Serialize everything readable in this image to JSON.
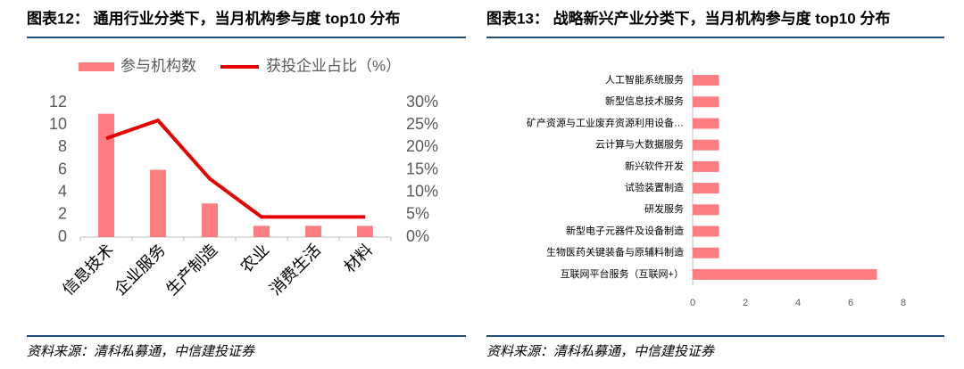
{
  "chart_data": [
    {
      "type": "combo",
      "title": "图表12： 通用行业分类下，当月机构参与度 top10 分布",
      "source": "资料来源：清科私募通，中信建投证券",
      "categories": [
        "信息技术",
        "企业服务",
        "生产制造",
        "农业",
        "消费生活",
        "材料"
      ],
      "series": [
        {
          "name": "参与机构数",
          "type": "bar",
          "color": "#ff7c80",
          "values": [
            11,
            6,
            3,
            1,
            1,
            1
          ]
        },
        {
          "name": "获投企业占比（%）",
          "type": "line",
          "axis": "y2",
          "color": "#e60000",
          "values": [
            22,
            26,
            13,
            4.5,
            4.5,
            4.5
          ]
        }
      ],
      "ylim": [
        0,
        12
      ],
      "yticks": [
        0,
        2,
        4,
        6,
        8,
        10,
        12
      ],
      "y2lim": [
        0,
        30
      ],
      "y2ticks": [
        {
          "value": 0,
          "label": "0%"
        },
        {
          "value": 5,
          "label": "5%"
        },
        {
          "value": 10,
          "label": "10%"
        },
        {
          "value": 15,
          "label": "15%"
        },
        {
          "value": 20,
          "label": "20%"
        },
        {
          "value": 25,
          "label": "25%"
        },
        {
          "value": 30,
          "label": "30%"
        }
      ],
      "legend": "top"
    },
    {
      "type": "barh",
      "title": "图表13： 战略新兴产业分类下，当月机构参与度 top10 分布",
      "source": "资料来源：清科私募通，中信建投证券",
      "categories": [
        "人工智能系统服务",
        "新型信息技术服务",
        "矿产资源与工业废弃资源利用设备…",
        "云计算与大数据服务",
        "新兴软件开发",
        "试验装置制造",
        "研发服务",
        "新型电子元器件及设备制造",
        "生物医药关键装备与原辅料制造",
        "互联网平台服务（互联网+）"
      ],
      "values": [
        1,
        1,
        1,
        1,
        1,
        1,
        1,
        1,
        1,
        7
      ],
      "color": "#ff7c80",
      "xlim": [
        0,
        8
      ],
      "xticks": [
        0,
        2,
        4,
        6,
        8
      ]
    }
  ]
}
